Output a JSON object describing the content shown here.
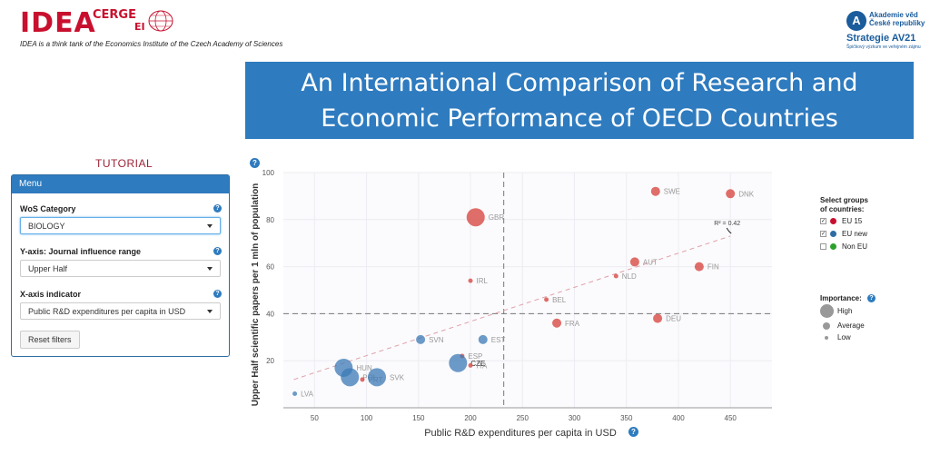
{
  "header": {
    "logo_idea": "IDEA",
    "logo_cerge": "CERGE",
    "logo_ei": "EI",
    "tagline": "IDEA is a think tank of the Economics Institute of the Czech Academy of Sciences",
    "av_logo_letter": "A",
    "av_line1": "Akademie věd",
    "av_line2": "České republiky",
    "av_line3": "Strategie AV21",
    "av_line4": "Špičkový výzkum ve veřejném zájmu",
    "title_line1": "An International Comparison of Research and",
    "title_line2": "Economic Performance of OECD Countries"
  },
  "sidebar": {
    "tutorial_label": "TUTORIAL",
    "menu_title": "Menu",
    "wos_label": "WoS Category",
    "wos_value": "BIOLOGY",
    "yaxis_label": "Y-axis: Journal influence range",
    "yaxis_value": "Upper Half",
    "xaxis_label": "X-axis indicator",
    "xaxis_value": "Public R&D expenditures per capita in USD",
    "reset_label": "Reset filters",
    "help_glyph": "?"
  },
  "legend": {
    "groups_title_1": "Select groups",
    "groups_title_2": "of countries:",
    "groups": [
      {
        "label": "EU 15",
        "color": "#c8102e",
        "checked": "✓"
      },
      {
        "label": "EU new",
        "color": "#2e6da4",
        "checked": "✓"
      },
      {
        "label": "Non EU",
        "color": "#2ca02c",
        "checked": ""
      }
    ],
    "importance_title": "Importance:",
    "importance": [
      "High",
      "Average",
      "Low"
    ]
  },
  "chart_data": {
    "type": "scatter",
    "xlabel": "Public R&D expenditures per capita in USD",
    "ylabel": "Upper Half scientific papers per 1 mln of population",
    "xlim": [
      20,
      490
    ],
    "ylim": [
      0,
      100
    ],
    "xticks": [
      50,
      100,
      150,
      200,
      250,
      300,
      350,
      400,
      450
    ],
    "yticks": [
      20,
      40,
      60,
      80,
      100
    ],
    "grid": true,
    "mean_x": 232,
    "mean_y": 40,
    "r2_label": "R² = 0.42",
    "trend": {
      "x": [
        30,
        450
      ],
      "y": [
        12,
        73
      ]
    },
    "colors": {
      "EU 15": "#d9534f",
      "EU new": "#3c7ab5",
      "Non EU": "#2ca02c"
    },
    "points": [
      {
        "label": "SWE",
        "x": 378,
        "y": 92,
        "group": "EU 15",
        "size": "average"
      },
      {
        "label": "DNK",
        "x": 450,
        "y": 91,
        "group": "EU 15",
        "size": "average"
      },
      {
        "label": "GBR",
        "x": 205,
        "y": 81,
        "group": "EU 15",
        "size": "high"
      },
      {
        "label": "AUT",
        "x": 358,
        "y": 62,
        "group": "EU 15",
        "size": "average"
      },
      {
        "label": "FIN",
        "x": 420,
        "y": 60,
        "group": "EU 15",
        "size": "average"
      },
      {
        "label": "NLD",
        "x": 340,
        "y": 56,
        "group": "EU 15",
        "size": "low"
      },
      {
        "label": "IRL",
        "x": 200,
        "y": 54,
        "group": "EU 15",
        "size": "low"
      },
      {
        "label": "BEL",
        "x": 273,
        "y": 46,
        "group": "EU 15",
        "size": "low"
      },
      {
        "label": "DEU",
        "x": 380,
        "y": 38,
        "group": "EU 15",
        "size": "average"
      },
      {
        "label": "FRA",
        "x": 283,
        "y": 36,
        "group": "EU 15",
        "size": "average"
      },
      {
        "label": "SVN",
        "x": 152,
        "y": 29,
        "group": "EU new",
        "size": "average"
      },
      {
        "label": "EST",
        "x": 212,
        "y": 29,
        "group": "EU new",
        "size": "average"
      },
      {
        "label": "ESP",
        "x": 192,
        "y": 22,
        "group": "EU 15",
        "size": "low"
      },
      {
        "label": "CZE",
        "x": 188,
        "y": 19,
        "group": "EU new",
        "size": "high"
      },
      {
        "label": "ITA",
        "x": 200,
        "y": 18,
        "group": "EU 15",
        "size": "low"
      },
      {
        "label": "HUN",
        "x": 78,
        "y": 17,
        "group": "EU new",
        "size": "high"
      },
      {
        "label": "POL",
        "x": 84,
        "y": 13,
        "group": "EU new",
        "size": "high"
      },
      {
        "label": "PRT",
        "x": 96,
        "y": 12,
        "group": "EU 15",
        "size": "low"
      },
      {
        "label": "SVK",
        "x": 110,
        "y": 13,
        "group": "EU new",
        "size": "high"
      },
      {
        "label": "LVA",
        "x": 31,
        "y": 6,
        "group": "EU new",
        "size": "low"
      }
    ]
  }
}
